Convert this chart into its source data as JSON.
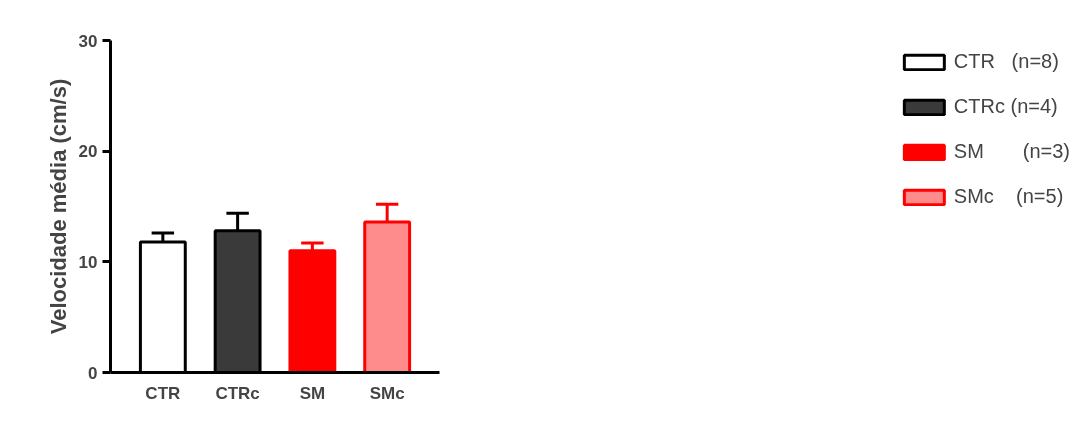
{
  "chart_data": {
    "type": "bar",
    "ylabel": "Velocidade média (cm/s)",
    "categories": [
      "CTR",
      "CTRc",
      "SM",
      "SMc"
    ],
    "series": [
      {
        "name": "CTR   (n=8)",
        "color": "#ffffff",
        "values": [
          11.8,
          null,
          null,
          null
        ],
        "errors": [
          0.8,
          null,
          null,
          null
        ]
      },
      {
        "name": "CTRc (n=4)",
        "color": "#3a3a3a",
        "values": [
          null,
          12.8,
          null,
          null
        ],
        "errors": [
          null,
          1.6,
          null,
          null
        ]
      },
      {
        "name": "SM       (n=3)",
        "color": "#ff0000",
        "values": [
          null,
          null,
          11.0,
          null
        ],
        "errors": [
          null,
          null,
          0.7,
          null
        ]
      },
      {
        "name": "SMc    (n=5)",
        "color": "#ff8c8c",
        "values": [
          null,
          null,
          null,
          13.6
        ],
        "errors": [
          null,
          null,
          null,
          1.6
        ]
      }
    ],
    "ylim": [
      0,
      30
    ],
    "yticks": [
      0,
      10,
      20,
      30
    ],
    "grid": false,
    "legend": "right"
  }
}
